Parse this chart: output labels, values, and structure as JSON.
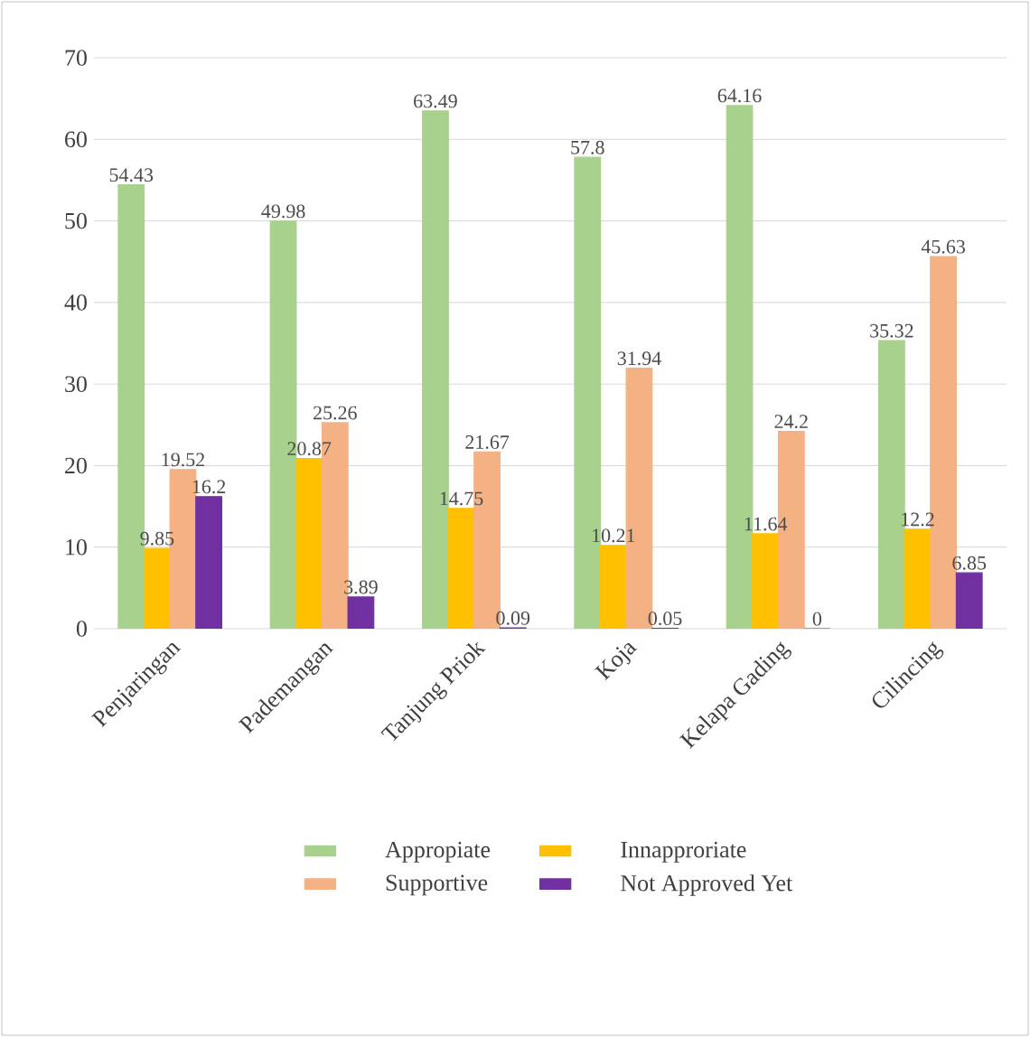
{
  "chart_data": {
    "type": "bar",
    "categories": [
      "Penjaringan",
      "Pademangan",
      "Tanjung Priok",
      "Koja",
      "Kelapa Gading",
      "Cilincing"
    ],
    "series": [
      {
        "name": "Appropiate",
        "color": "#a9d18e",
        "values": [
          54.43,
          49.98,
          63.49,
          57.8,
          64.16,
          35.32
        ]
      },
      {
        "name": "Innapproriate",
        "color": "#ffc000",
        "values": [
          9.85,
          20.87,
          14.75,
          10.21,
          11.64,
          12.2
        ]
      },
      {
        "name": "Supportive",
        "color": "#f4b183",
        "values": [
          19.52,
          25.26,
          21.67,
          31.94,
          24.2,
          45.63
        ]
      },
      {
        "name": "Not Approved Yet",
        "color": "#7030a0",
        "values": [
          16.2,
          3.89,
          0.09,
          0.05,
          0,
          6.85
        ]
      }
    ],
    "ylim": [
      0,
      70
    ],
    "yticks": [
      0,
      10,
      20,
      30,
      40,
      50,
      60,
      70
    ],
    "grid": "y",
    "legend": "bottom",
    "data_labels": true
  }
}
